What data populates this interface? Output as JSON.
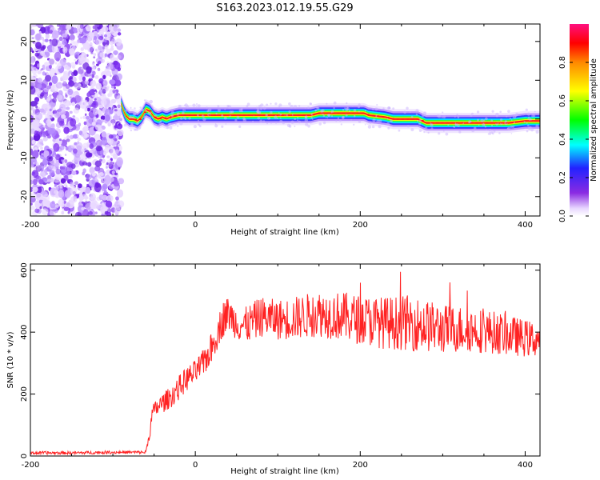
{
  "title": "S163.2023.012.19.55.G29",
  "chart_data": [
    {
      "type": "heatmap",
      "xlabel": "Height of straight line (km)",
      "ylabel": "Frequency (Hz)",
      "xlim": [
        -200,
        418
      ],
      "ylim": [
        -25,
        24.5
      ],
      "x_ticks": [
        -200,
        0,
        200,
        400
      ],
      "x_tick_labels": [
        "-200",
        "0",
        "200",
        "400"
      ],
      "y_ticks": [
        20,
        10,
        0,
        -10,
        -20
      ],
      "y_tick_labels": [
        "20",
        "10",
        "0",
        "-10",
        "-20"
      ],
      "noise_region_x": [
        -200,
        -90
      ],
      "ridge": {
        "x": [
          -90,
          -85,
          -80,
          -75,
          -70,
          -65,
          -60,
          -55,
          -50,
          -45,
          -40,
          -35,
          -30,
          -20,
          -10,
          0,
          20,
          40,
          60,
          80,
          100,
          120,
          140,
          150,
          170,
          200,
          205,
          210,
          230,
          240,
          260,
          270,
          280,
          300,
          320,
          340,
          360,
          380,
          400,
          418
        ],
        "freq": [
          4,
          1,
          0,
          0,
          -0.5,
          0.5,
          2.5,
          2,
          0.5,
          0,
          0.5,
          0,
          0.5,
          1,
          1,
          1,
          1,
          1,
          1,
          1,
          1,
          1,
          1,
          1.5,
          1.5,
          1.5,
          1.5,
          1,
          0.5,
          0,
          0,
          0,
          -1,
          -1,
          -1,
          -1,
          -1,
          -1,
          -0.5,
          -0.5
        ]
      },
      "colorbar": {
        "label": "Normalized spectral amplitude",
        "range": [
          0,
          1
        ],
        "ticks": [
          0.0,
          0.2,
          0.4,
          0.6,
          0.8
        ],
        "tick_labels": [
          "0.0",
          "0.2",
          "0.4",
          "0.6",
          "0.8"
        ]
      }
    },
    {
      "type": "line",
      "xlabel": "Height of straight line (km)",
      "ylabel": "SNR (10 * v/v)",
      "xlim": [
        -200,
        418
      ],
      "ylim": [
        0,
        620
      ],
      "x_ticks": [
        -200,
        0,
        200,
        400
      ],
      "x_tick_labels": [
        "-200",
        "0",
        "200",
        "400"
      ],
      "y_ticks": [
        0,
        200,
        400,
        600
      ],
      "y_tick_labels": [
        "0",
        "200",
        "400",
        "600"
      ],
      "series": [
        {
          "name": "SNR",
          "color": "#ff2222",
          "x": [
            -200,
            -150,
            -100,
            -60,
            -55,
            -52,
            -45,
            -30,
            -20,
            -10,
            0,
            10,
            20,
            30,
            35,
            40,
            50,
            60,
            80,
            100,
            120,
            150,
            180,
            200,
            230,
            260,
            280,
            300,
            330,
            360,
            380,
            400,
            418
          ],
          "mean": [
            10,
            10,
            12,
            12,
            80,
            140,
            160,
            190,
            220,
            250,
            270,
            300,
            350,
            420,
            450,
            460,
            430,
            420,
            450,
            440,
            445,
            460,
            450,
            440,
            430,
            430,
            420,
            410,
            410,
            400,
            390,
            380,
            375
          ],
          "noise": [
            5,
            5,
            5,
            5,
            20,
            25,
            30,
            35,
            40,
            40,
            40,
            45,
            50,
            55,
            60,
            55,
            55,
            60,
            65,
            65,
            70,
            75,
            80,
            80,
            85,
            90,
            85,
            80,
            75,
            70,
            65,
            60,
            55
          ]
        }
      ]
    }
  ]
}
